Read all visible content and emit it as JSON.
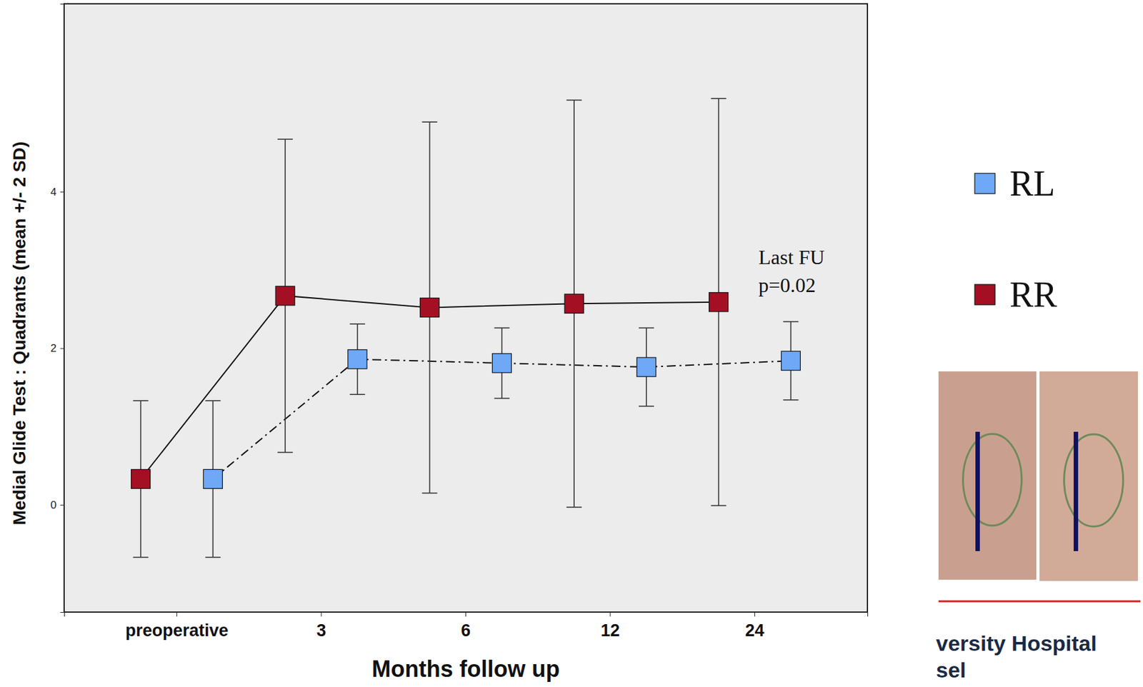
{
  "chart_data": {
    "type": "line",
    "x_label": "Months follow up",
    "y_label": "Medial Glide Test : Quadrants (mean +/- 2 SD)",
    "categories": [
      "preoperative",
      "3",
      "6",
      "12",
      "24"
    ],
    "series": [
      {
        "name": "RL",
        "color": "#6ea8f7",
        "marker": "square",
        "line_style": "dashdot",
        "values": [
          0.33,
          1.86,
          1.81,
          1.76,
          1.84
        ],
        "errors": [
          1.0,
          0.45,
          0.45,
          0.5,
          0.5
        ]
      },
      {
        "name": "RR",
        "color": "#a50f23",
        "marker": "square",
        "line_style": "solid",
        "values": [
          0.33,
          2.67,
          2.52,
          2.57,
          2.59
        ],
        "errors": [
          1.0,
          2.0,
          2.37,
          2.6,
          2.6
        ]
      }
    ],
    "ylim": [
      -1.37,
      6.4
    ],
    "yticks": [
      0,
      2,
      4
    ],
    "annotations": [
      "Last FU",
      "p=0.02"
    ],
    "legend": "right",
    "footer": [
      "versity Hospital",
      "sel"
    ]
  }
}
